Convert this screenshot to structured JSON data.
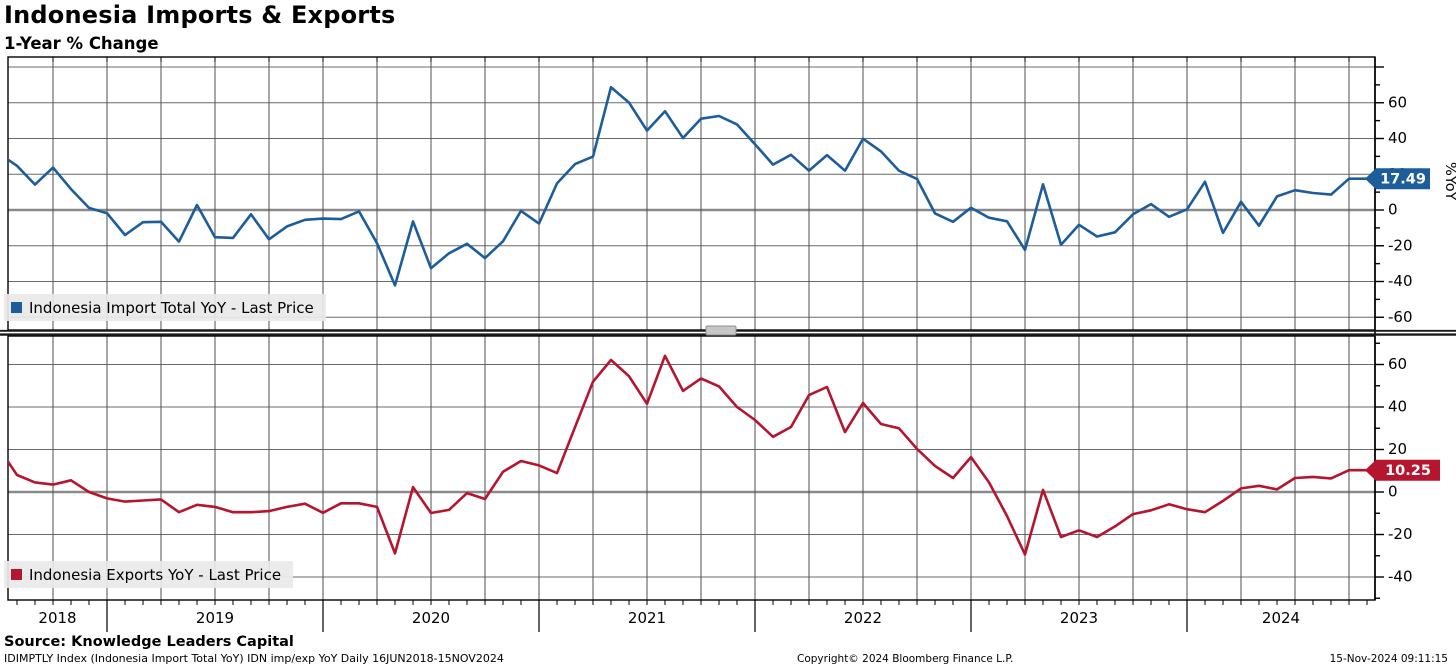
{
  "header": {
    "title": "Indonesia Imports & Exports",
    "subtitle": "1-Year % Change"
  },
  "colors": {
    "import_line": "#1d5d9b",
    "export_line": "#b5152f",
    "grid_h": "#6a6a6a",
    "grid_v": "#4f4f4f",
    "zero_line": "#8a8a8a",
    "frame": "#000000",
    "legend_bg": "#e9e9e9",
    "badge_text": "#ffffff"
  },
  "legend_top": {
    "label": "Indonesia Import Total YoY - Last Price"
  },
  "legend_bottom": {
    "label": "Indonesia Exports YoY - Last Price"
  },
  "right_axis_label": "%YoY",
  "badges": {
    "import_last": "17.49",
    "export_last": "10.25"
  },
  "chart_data": [
    {
      "type": "line",
      "name": "imports",
      "title": "Indonesia Import Total YoY",
      "legend": "Indonesia Import Total YoY - Last Price",
      "frequency": "monthly",
      "x_start": "2018-06",
      "x_end": "2024-10",
      "x_tick_labels": [
        "2018",
        "2019",
        "2020",
        "2021",
        "2022",
        "2023",
        "2024"
      ],
      "ylabel": "%YoY",
      "ylim": [
        -67,
        85
      ],
      "yticks": [
        60,
        40,
        20,
        0,
        -20,
        -40,
        -60
      ],
      "grid": true,
      "legend_position": "bottom-left",
      "last_price": 17.49,
      "series": [
        {
          "name": "Indonesia Import Total YoY - Last Price",
          "values": [
            12.7,
            31.6,
            24.7,
            14.2,
            23.7,
            11.7,
            1.2,
            -1.8,
            -14.0,
            -6.8,
            -6.6,
            -17.7,
            2.8,
            -15.2,
            -15.6,
            -2.4,
            -16.4,
            -9.2,
            -5.5,
            -4.8,
            -5.1,
            -0.8,
            -18.6,
            -42.2,
            -6.4,
            -32.6,
            -24.2,
            -18.9,
            -26.9,
            -17.5,
            -0.5,
            -7.6,
            14.9,
            25.7,
            29.9,
            68.7,
            60.1,
            44.4,
            55.3,
            40.3,
            51.1,
            52.6,
            47.9,
            36.8,
            25.4,
            30.9,
            22.0,
            30.7,
            22.0,
            39.9,
            32.8,
            22.0,
            17.4,
            -1.9,
            -6.6,
            1.3,
            -4.3,
            -6.3,
            -22.3,
            14.4,
            -19.4,
            -8.3,
            -14.8,
            -12.5,
            -2.4,
            3.3,
            -3.8,
            0.4,
            15.8,
            -12.8,
            4.6,
            -8.8,
            7.6,
            11.1,
            9.5,
            8.6,
            17.49
          ]
        }
      ]
    },
    {
      "type": "line",
      "name": "exports",
      "title": "Indonesia Exports YoY",
      "legend": "Indonesia Exports YoY - Last Price",
      "frequency": "monthly",
      "x_start": "2018-06",
      "x_end": "2024-10",
      "x_tick_labels": [
        "2018",
        "2019",
        "2020",
        "2021",
        "2022",
        "2023",
        "2024"
      ],
      "ylabel": "",
      "ylim": [
        -51,
        75
      ],
      "yticks": [
        60,
        40,
        20,
        0,
        -20,
        -40
      ],
      "grid": true,
      "legend_position": "bottom-left",
      "last_price": 10.25,
      "series": [
        {
          "name": "Indonesia Exports YoY - Last Price",
          "values": [
            11.8,
            20.5,
            8.0,
            4.5,
            3.5,
            5.5,
            0.0,
            -3.0,
            -4.5,
            -4.0,
            -3.5,
            -9.5,
            -6.0,
            -7.0,
            -9.5,
            -9.5,
            -9.0,
            -7.0,
            -5.5,
            -9.8,
            -5.3,
            -5.3,
            -7.0,
            -28.9,
            2.3,
            -9.9,
            -8.4,
            -0.5,
            -3.3,
            9.5,
            14.6,
            12.5,
            8.9,
            30.5,
            51.9,
            62.1,
            54.5,
            41.5,
            64.1,
            47.6,
            53.4,
            49.7,
            40.0,
            33.9,
            26.0,
            30.6,
            45.6,
            49.4,
            28.2,
            41.9,
            32.0,
            30.0,
            20.3,
            12.3,
            6.6,
            16.4,
            4.5,
            -11.3,
            -29.4,
            1.0,
            -21.2,
            -18.0,
            -21.2,
            -16.2,
            -10.4,
            -8.6,
            -5.8,
            -8.1,
            -9.5,
            -4.2,
            1.7,
            2.9,
            1.2,
            6.6,
            7.1,
            6.4,
            10.25
          ]
        }
      ]
    }
  ],
  "footer": {
    "source": "Source: Knowledge Leaders Capital",
    "info": "IDIMPTLY Index (Indonesia Import Total YoY) IDN imp/exp YoY  Daily 16JUN2018-15NOV2024",
    "copyright": "Copyright© 2024 Bloomberg Finance L.P.",
    "datetime": "15-Nov-2024 09:11:15"
  }
}
